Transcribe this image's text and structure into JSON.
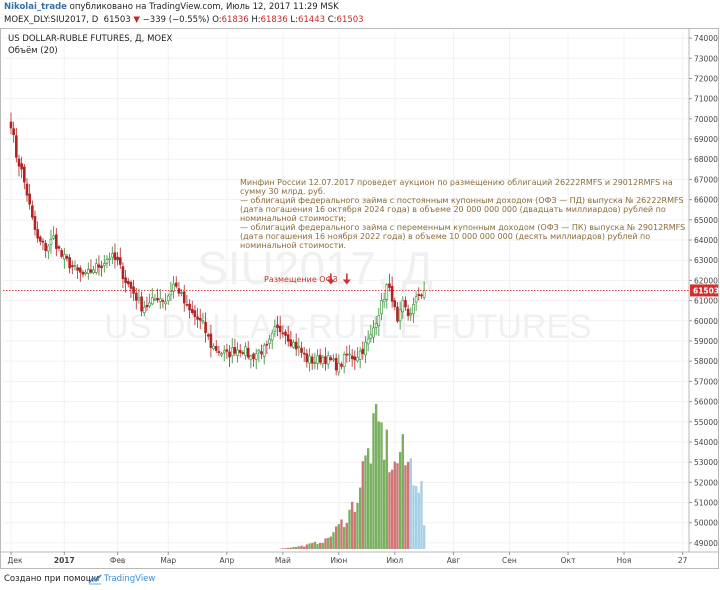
{
  "header": {
    "user": "Nikolai_trade",
    "published": "опубликовано на TradingView.com, Июль 12, 2017 11:29 MSK",
    "symbol_line": "MOEX_DLY:SIU2017, D",
    "last": "61503",
    "change": "−339 (−0.55%)",
    "o_label": "O:",
    "o_value": "61836",
    "h_label": "H:",
    "h_value": "61836",
    "l_label": "L:",
    "l_value": "61443",
    "c_label": "C:",
    "c_value": "61503"
  },
  "footer": {
    "created_with": "Создано при помощи",
    "brand": "TradingView"
  },
  "colors": {
    "up": "#2e8b2e",
    "down": "#b22222",
    "last_price_line": "#d32f2f",
    "volume_up": "#6aa84f",
    "volume_down": "#cc6666",
    "volume_light": "#9ccbe6",
    "annotation": "#8a6d3b"
  },
  "chart_data": {
    "type": "candlestick",
    "title": "US DOLLAR-RUBLE FUTURES, Д, MOEX",
    "volume_label": "Объём (20)",
    "watermark_symbol": "SIU2017, Д",
    "watermark_name": "US DOLLAR-RUBLE FUTURES",
    "ylim": [
      48600,
      74400
    ],
    "y_ticks": [
      49000,
      50000,
      51000,
      52000,
      53000,
      54000,
      55000,
      56000,
      57000,
      58000,
      59000,
      60000,
      61000,
      62000,
      63000,
      64000,
      65000,
      66000,
      67000,
      68000,
      69000,
      70000,
      71000,
      72000,
      73000,
      74000
    ],
    "last_price": 61503,
    "last_price_label": "61503",
    "x_ticks": [
      "Дек",
      "2017",
      "Фев",
      "Мар",
      "Апр",
      "Май",
      "Июн",
      "Июл",
      "Авг",
      "Сен",
      "Окт",
      "Ноя",
      "27"
    ],
    "x_tick_positions": [
      0,
      20,
      40,
      59,
      81,
      102,
      123,
      144,
      166,
      187,
      209,
      230,
      252
    ],
    "x_range": [
      -3,
      254
    ],
    "annotation_lines": [
      "Минфин России 12.07.2017 проведет аукцион по размещению облигаций 26222RMFS и 29012RMFS на",
      "сумму 30 млрд. руб.",
      "— облигаций федерального займа с постоянным купонным доходом (ОФЗ — ПД) выпуска № 26222RMFS",
      "(дата погашения 16 октября 2024 года) в объеме 20 000 000 000 (двадцать миллиардов) рублей по",
      "номинальной стоимости;",
      "— облигаций федерального займа с переменным купонным доходом (ОФЗ — ПК) выпуска № 29012RMFS",
      "(дата погашения 16 ноября 2022 года) в объеме 10 000 000 000 (десять миллиардов) рублей по",
      "номинальной стоимости."
    ],
    "placement_label": "Размещение ОФЗ",
    "placement_arrows": [
      120,
      126
    ],
    "close_anchors": [
      [
        0,
        69800
      ],
      [
        2,
        68200
      ],
      [
        4,
        67400
      ],
      [
        6,
        66300
      ],
      [
        8,
        65000
      ],
      [
        10,
        64000
      ],
      [
        13,
        63600
      ],
      [
        16,
        64100
      ],
      [
        19,
        63200
      ],
      [
        22,
        62800
      ],
      [
        25,
        62400
      ],
      [
        28,
        62200
      ],
      [
        31,
        62600
      ],
      [
        34,
        62800
      ],
      [
        37,
        63200
      ],
      [
        40,
        62900
      ],
      [
        43,
        62000
      ],
      [
        46,
        61400
      ],
      [
        49,
        60700
      ],
      [
        52,
        60800
      ],
      [
        55,
        61200
      ],
      [
        58,
        61000
      ],
      [
        61,
        61800
      ],
      [
        63,
        61500
      ],
      [
        66,
        60600
      ],
      [
        69,
        60200
      ],
      [
        72,
        59800
      ],
      [
        75,
        58800
      ],
      [
        78,
        58500
      ],
      [
        81,
        58300
      ],
      [
        84,
        58600
      ],
      [
        87,
        58600
      ],
      [
        90,
        58200
      ],
      [
        93,
        58500
      ],
      [
        96,
        58600
      ],
      [
        99,
        59500
      ],
      [
        102,
        59600
      ],
      [
        105,
        59000
      ],
      [
        108,
        58600
      ],
      [
        111,
        58100
      ],
      [
        114,
        58000
      ],
      [
        117,
        58200
      ],
      [
        120,
        58000
      ],
      [
        123,
        57700
      ],
      [
        126,
        58300
      ],
      [
        129,
        58200
      ],
      [
        132,
        58600
      ],
      [
        135,
        59200
      ],
      [
        137,
        60100
      ],
      [
        139,
        60800
      ],
      [
        141,
        61700
      ],
      [
        143,
        61200
      ],
      [
        145,
        59800
      ],
      [
        147,
        60800
      ],
      [
        149,
        60300
      ],
      [
        151,
        60700
      ],
      [
        153,
        61300
      ],
      [
        155,
        61500
      ]
    ],
    "volume_envelope": [
      [
        0,
        0
      ],
      [
        100,
        0
      ],
      [
        110,
        150
      ],
      [
        118,
        400
      ],
      [
        122,
        900
      ],
      [
        126,
        1500
      ],
      [
        130,
        2400
      ],
      [
        132,
        3600
      ],
      [
        134,
        4400
      ],
      [
        136,
        5200
      ],
      [
        138,
        5600
      ],
      [
        140,
        5000
      ],
      [
        142,
        4300
      ],
      [
        144,
        3700
      ],
      [
        146,
        4600
      ],
      [
        148,
        4000
      ],
      [
        150,
        3900
      ],
      [
        152,
        3500
      ],
      [
        154,
        2700
      ],
      [
        155,
        1200
      ]
    ]
  }
}
